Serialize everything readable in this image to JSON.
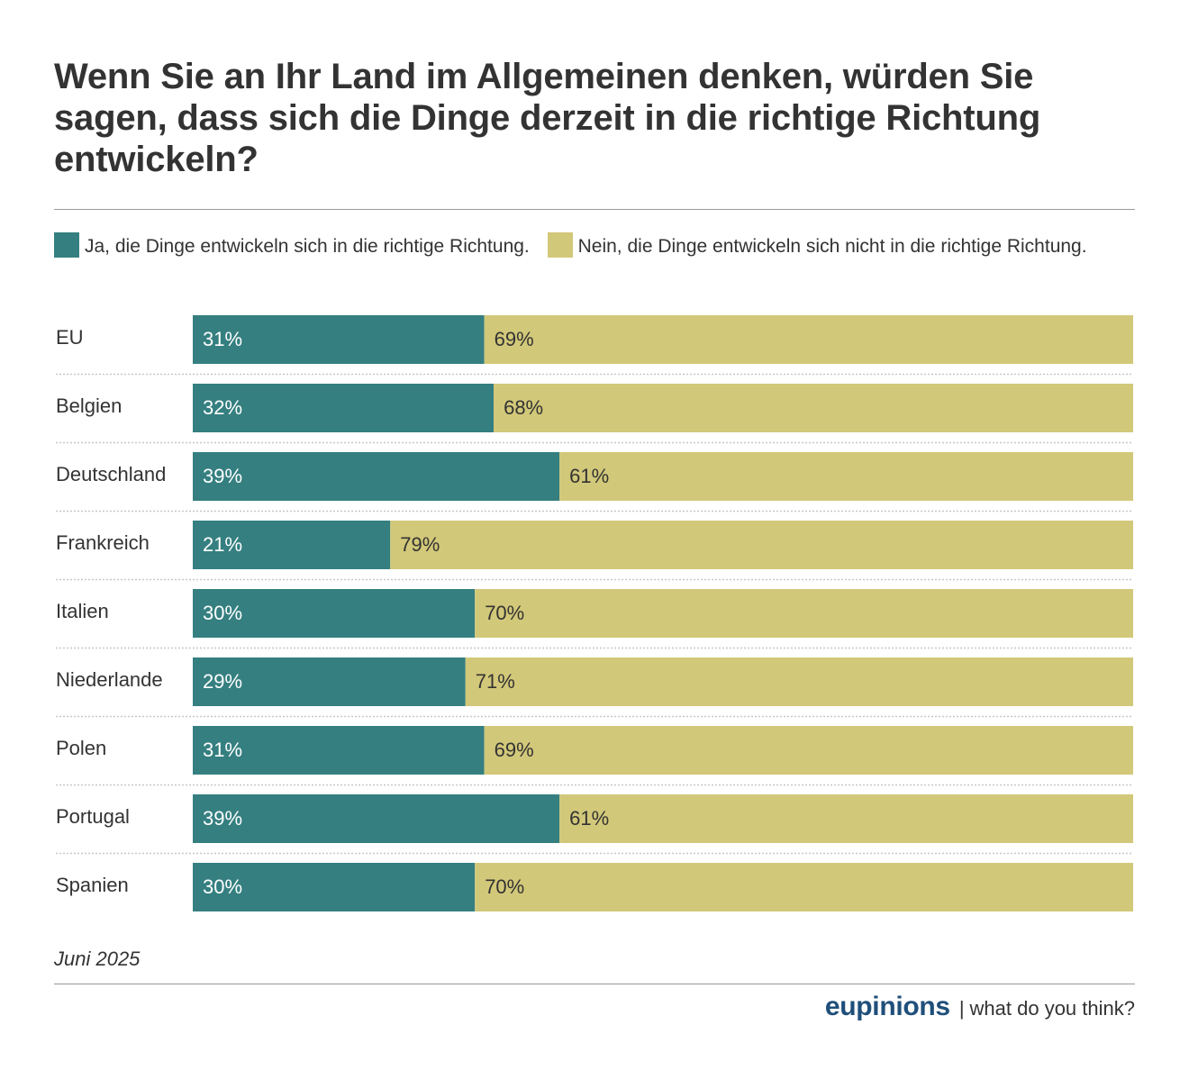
{
  "colors": {
    "yes": "#357f80",
    "no": "#d2c879",
    "brand": "#1f4f7a",
    "rule": "#9a9a9a",
    "text": "#333333"
  },
  "legend": {
    "yes_label": "Ja, die Dinge entwickeln sich in die richtige Richtung.",
    "no_label": "Nein, die Dinge entwickeln sich nicht in die richtige Richtung."
  },
  "footer": {
    "date": "Juni 2025",
    "brand": "eupinions",
    "separator": "|",
    "tagline": "what do you think?"
  },
  "chart_data": {
    "type": "bar",
    "orientation": "horizontal",
    "stacked": true,
    "title": "Wenn Sie an Ihr Land im Allgemeinen denken, würden Sie sagen, dass sich die Dinge derzeit in die richtige Richtung entwickeln?",
    "categories": [
      "EU",
      "Belgien",
      "Deutschland",
      "Frankreich",
      "Italien",
      "Niederlande",
      "Polen",
      "Portugal",
      "Spanien"
    ],
    "series": [
      {
        "name": "Ja, die Dinge entwickeln sich in die richtige Richtung.",
        "color": "#357f80",
        "values": [
          31,
          32,
          39,
          21,
          30,
          29,
          31,
          39,
          30
        ],
        "labels": [
          "31%",
          "32%",
          "39%",
          "21%",
          "30%",
          "29%",
          "31%",
          "39%",
          "30%"
        ]
      },
      {
        "name": "Nein, die Dinge entwickeln sich nicht in die richtige Richtung.",
        "color": "#d2c879",
        "values": [
          69,
          68,
          61,
          79,
          70,
          71,
          69,
          61,
          70
        ],
        "labels": [
          "69%",
          "68%",
          "61%",
          "79%",
          "70%",
          "71%",
          "69%",
          "61%",
          "70%"
        ]
      }
    ],
    "xlim": [
      0,
      100
    ],
    "unit": "%",
    "legend_position": "top-left",
    "grid": false
  }
}
